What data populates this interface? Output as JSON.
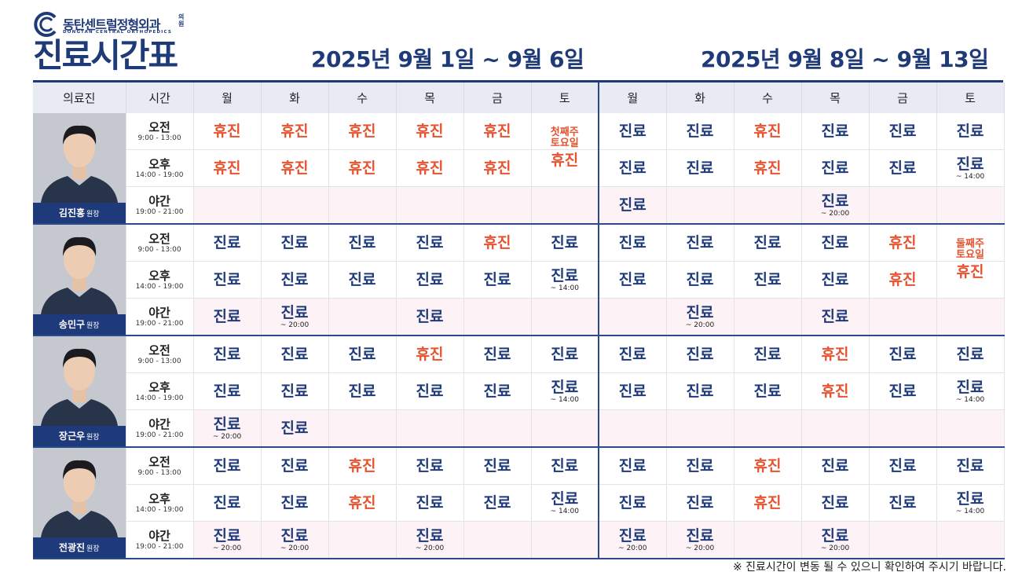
{
  "header": {
    "logo_name": "동탄센트럴정형외과",
    "logo_suffix": "의원",
    "logo_en": "DONGTAN CENTRAL ORTHOPEDICS",
    "title": "진료시간표",
    "week1": "2025년 9월 1일 ~ 9월 6일",
    "week2": "2025년 9월 8일 ~ 9월 13일"
  },
  "palette": {
    "open": "#1e3a78",
    "closed": "#e5532f"
  },
  "table": {
    "columns": [
      "의료진",
      "시간",
      "월",
      "화",
      "수",
      "목",
      "금",
      "토",
      "월",
      "화",
      "수",
      "목",
      "금",
      "토"
    ],
    "doctors": [
      {
        "name": "김진홍",
        "role": "원장",
        "rows": [
          {
            "period": "오전",
            "hours": "9:00 - 13:00",
            "cells": [
              {
                "text": "휴진",
                "state": "closed"
              },
              {
                "text": "휴진",
                "state": "closed"
              },
              {
                "text": "휴진",
                "state": "closed"
              },
              {
                "text": "휴진",
                "state": "closed"
              },
              {
                "text": "휴진",
                "state": "closed"
              },
              {
                "text": [
                  "첫째주",
                  "토요일"
                ],
                "state": "closed"
              },
              {
                "text": "진료",
                "state": "open"
              },
              {
                "text": "진료",
                "state": "open"
              },
              {
                "text": "휴진",
                "state": "closed"
              },
              {
                "text": "진료",
                "state": "open"
              },
              {
                "text": "진료",
                "state": "open"
              },
              {
                "text": "진료",
                "state": "open"
              }
            ]
          },
          {
            "period": "오후",
            "hours": "14:00 - 19:00",
            "cells": [
              {
                "text": "휴진",
                "state": "closed"
              },
              {
                "text": "휴진",
                "state": "closed"
              },
              {
                "text": "휴진",
                "state": "closed"
              },
              {
                "text": "휴진",
                "state": "closed"
              },
              {
                "text": "휴진",
                "state": "closed"
              },
              {
                "text": "휴진",
                "state": "closed"
              },
              {
                "text": "진료",
                "state": "open"
              },
              {
                "text": "진료",
                "state": "open"
              },
              {
                "text": "휴진",
                "state": "closed"
              },
              {
                "text": "진료",
                "state": "open"
              },
              {
                "text": "진료",
                "state": "open"
              },
              {
                "text": "진료",
                "note": "~ 14:00",
                "state": "open"
              }
            ]
          },
          {
            "period": "야간",
            "hours": "19:00 - 21:00",
            "cells": [
              null,
              null,
              null,
              null,
              null,
              null,
              {
                "text": "진료",
                "state": "open"
              },
              null,
              null,
              {
                "text": "진료",
                "note": "~ 20:00",
                "state": "open"
              },
              null,
              null
            ]
          }
        ]
      },
      {
        "name": "송민구",
        "role": "원장",
        "rows": [
          {
            "period": "오전",
            "hours": "9:00 - 13:00",
            "cells": [
              {
                "text": "진료",
                "state": "open"
              },
              {
                "text": "진료",
                "state": "open"
              },
              {
                "text": "진료",
                "state": "open"
              },
              {
                "text": "진료",
                "state": "open"
              },
              {
                "text": "휴진",
                "state": "closed"
              },
              {
                "text": "진료",
                "state": "open"
              },
              {
                "text": "진료",
                "state": "open"
              },
              {
                "text": "진료",
                "state": "open"
              },
              {
                "text": "진료",
                "state": "open"
              },
              {
                "text": "진료",
                "state": "open"
              },
              {
                "text": "휴진",
                "state": "closed"
              },
              {
                "text": [
                  "둘째주",
                  "토요일"
                ],
                "state": "closed"
              }
            ]
          },
          {
            "period": "오후",
            "hours": "14:00 - 19:00",
            "cells": [
              {
                "text": "진료",
                "state": "open"
              },
              {
                "text": "진료",
                "state": "open"
              },
              {
                "text": "진료",
                "state": "open"
              },
              {
                "text": "진료",
                "state": "open"
              },
              {
                "text": "진료",
                "state": "open"
              },
              {
                "text": "진료",
                "note": "~ 14:00",
                "state": "open"
              },
              {
                "text": "진료",
                "state": "open"
              },
              {
                "text": "진료",
                "state": "open"
              },
              {
                "text": "진료",
                "state": "open"
              },
              {
                "text": "진료",
                "state": "open"
              },
              {
                "text": "휴진",
                "state": "closed"
              },
              {
                "text": "휴진",
                "state": "closed"
              }
            ]
          },
          {
            "period": "야간",
            "hours": "19:00 - 21:00",
            "cells": [
              {
                "text": "진료",
                "state": "open"
              },
              {
                "text": "진료",
                "note": "~ 20:00",
                "state": "open"
              },
              null,
              {
                "text": "진료",
                "state": "open"
              },
              null,
              null,
              null,
              {
                "text": "진료",
                "note": "~ 20:00",
                "state": "open"
              },
              null,
              {
                "text": "진료",
                "state": "open"
              },
              null,
              null
            ]
          }
        ]
      },
      {
        "name": "장근우",
        "role": "원장",
        "rows": [
          {
            "period": "오전",
            "hours": "9:00 - 13:00",
            "cells": [
              {
                "text": "진료",
                "state": "open"
              },
              {
                "text": "진료",
                "state": "open"
              },
              {
                "text": "진료",
                "state": "open"
              },
              {
                "text": "휴진",
                "state": "closed"
              },
              {
                "text": "진료",
                "state": "open"
              },
              {
                "text": "진료",
                "state": "open"
              },
              {
                "text": "진료",
                "state": "open"
              },
              {
                "text": "진료",
                "state": "open"
              },
              {
                "text": "진료",
                "state": "open"
              },
              {
                "text": "휴진",
                "state": "closed"
              },
              {
                "text": "진료",
                "state": "open"
              },
              {
                "text": "진료",
                "state": "open"
              }
            ]
          },
          {
            "period": "오후",
            "hours": "14:00 - 19:00",
            "cells": [
              {
                "text": "진료",
                "state": "open"
              },
              {
                "text": "진료",
                "state": "open"
              },
              {
                "text": "진료",
                "state": "open"
              },
              {
                "text": "진료",
                "state": "open"
              },
              {
                "text": "진료",
                "state": "open"
              },
              {
                "text": "진료",
                "note": "~ 14:00",
                "state": "open"
              },
              {
                "text": "진료",
                "state": "open"
              },
              {
                "text": "진료",
                "state": "open"
              },
              {
                "text": "진료",
                "state": "open"
              },
              {
                "text": "휴진",
                "state": "closed"
              },
              {
                "text": "진료",
                "state": "open"
              },
              {
                "text": "진료",
                "note": "~ 14:00",
                "state": "open"
              }
            ]
          },
          {
            "period": "야간",
            "hours": "19:00 - 21:00",
            "cells": [
              {
                "text": "진료",
                "note": "~ 20:00",
                "state": "open"
              },
              {
                "text": "진료",
                "state": "open"
              },
              null,
              null,
              null,
              null,
              null,
              null,
              null,
              null,
              null,
              null
            ]
          }
        ]
      },
      {
        "name": "전광진",
        "role": "원장",
        "rows": [
          {
            "period": "오전",
            "hours": "9:00 - 13:00",
            "cells": [
              {
                "text": "진료",
                "state": "open"
              },
              {
                "text": "진료",
                "state": "open"
              },
              {
                "text": "휴진",
                "state": "closed"
              },
              {
                "text": "진료",
                "state": "open"
              },
              {
                "text": "진료",
                "state": "open"
              },
              {
                "text": "진료",
                "state": "open"
              },
              {
                "text": "진료",
                "state": "open"
              },
              {
                "text": "진료",
                "state": "open"
              },
              {
                "text": "휴진",
                "state": "closed"
              },
              {
                "text": "진료",
                "state": "open"
              },
              {
                "text": "진료",
                "state": "open"
              },
              {
                "text": "진료",
                "state": "open"
              }
            ]
          },
          {
            "period": "오후",
            "hours": "14:00 - 19:00",
            "cells": [
              {
                "text": "진료",
                "state": "open"
              },
              {
                "text": "진료",
                "state": "open"
              },
              {
                "text": "휴진",
                "state": "closed"
              },
              {
                "text": "진료",
                "state": "open"
              },
              {
                "text": "진료",
                "state": "open"
              },
              {
                "text": "진료",
                "note": "~ 14:00",
                "state": "open"
              },
              {
                "text": "진료",
                "state": "open"
              },
              {
                "text": "진료",
                "state": "open"
              },
              {
                "text": "휴진",
                "state": "closed"
              },
              {
                "text": "진료",
                "state": "open"
              },
              {
                "text": "진료",
                "state": "open"
              },
              {
                "text": "진료",
                "note": "~ 14:00",
                "state": "open"
              }
            ]
          },
          {
            "period": "야간",
            "hours": "19:00 - 21:00",
            "cells": [
              {
                "text": "진료",
                "note": "~ 20:00",
                "state": "open"
              },
              {
                "text": "진료",
                "note": "~ 20:00",
                "state": "open"
              },
              null,
              {
                "text": "진료",
                "note": "~ 20:00",
                "state": "open"
              },
              null,
              null,
              {
                "text": "진료",
                "note": "~ 20:00",
                "state": "open"
              },
              {
                "text": "진료",
                "note": "~ 20:00",
                "state": "open"
              },
              null,
              {
                "text": "진료",
                "note": "~ 20:00",
                "state": "open"
              },
              null,
              null
            ]
          }
        ]
      }
    ]
  },
  "footnote": "※ 진료시간이 변동 될 수 있으니 확인하여 주시기 바랍니다."
}
